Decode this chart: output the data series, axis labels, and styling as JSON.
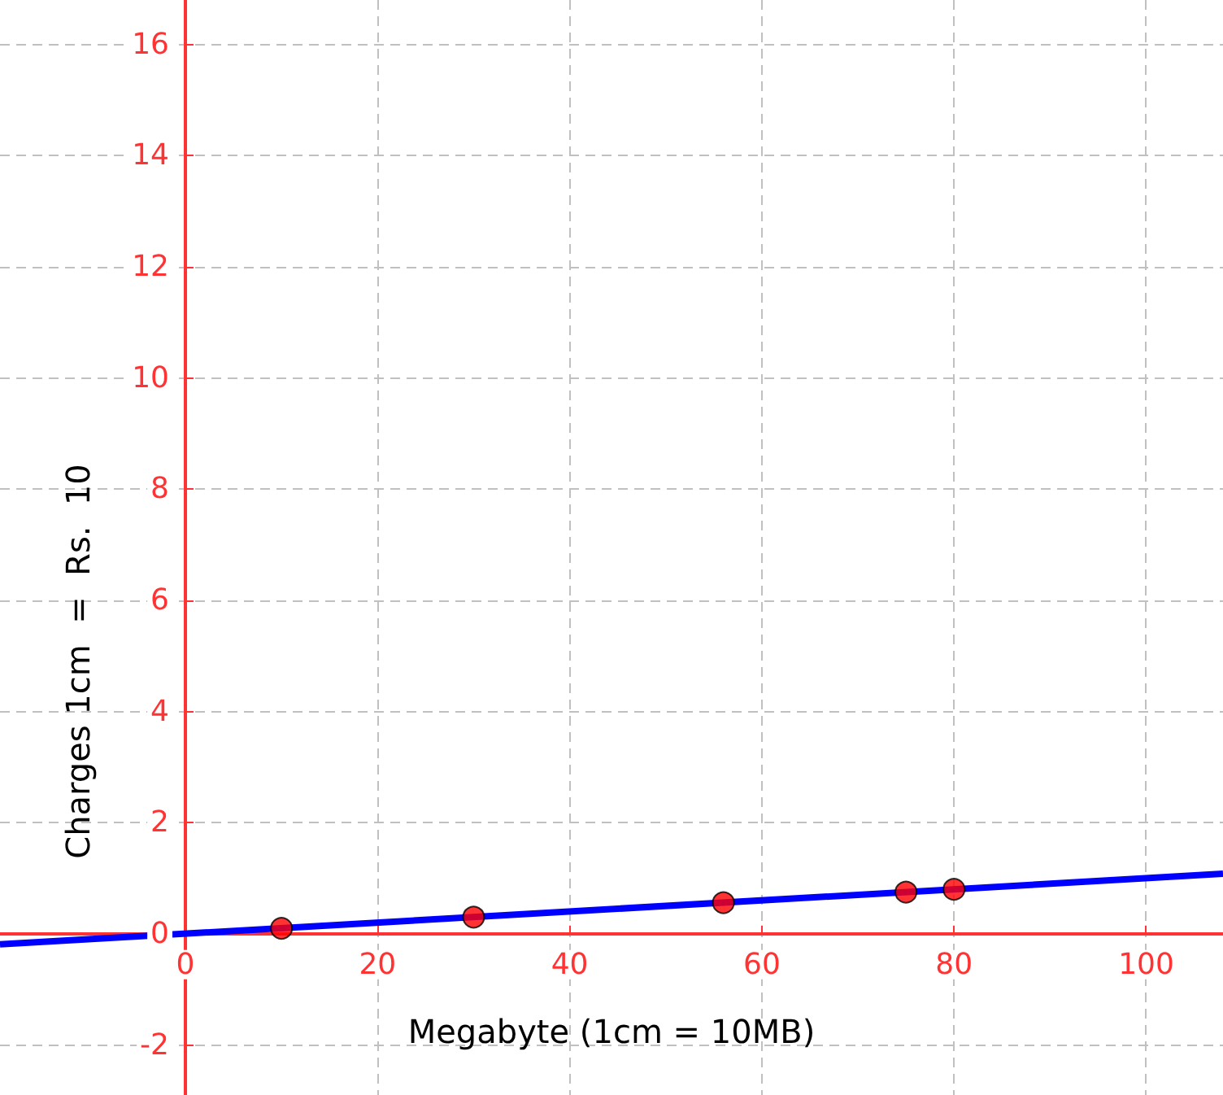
{
  "chart_data": {
    "type": "scatter",
    "xlabel": "Megabyte (1cm = 10MB)",
    "ylabel": "Charges 1cm  =  Rs.  10",
    "x": [
      10,
      30,
      56,
      75,
      80
    ],
    "series": [
      {
        "color": "#ff0000",
        "values": [
          0.1,
          0.3,
          0.56,
          0.75,
          0.8
        ]
      },
      {
        "type": "line",
        "color": "#0000ff",
        "x": [
          -19.3,
          108
        ],
        "values": [
          -0.19,
          1.08
        ],
        "marker": "none"
      }
    ],
    "xlim": [
      -19.3,
      108
    ],
    "ylim": [
      -2.9,
      16.8
    ],
    "xticks": [
      0,
      20,
      40,
      60,
      80,
      100
    ],
    "yticks": [
      -2,
      0,
      2,
      4,
      6,
      8,
      10,
      12,
      14,
      16
    ],
    "grid": true,
    "marker": "circle"
  }
}
